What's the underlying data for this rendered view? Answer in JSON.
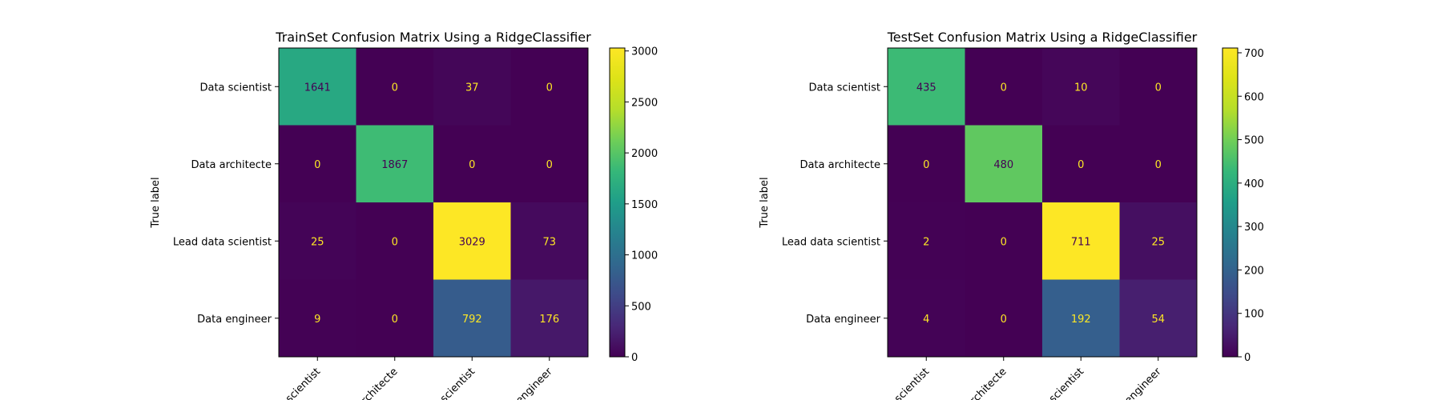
{
  "chart_data": [
    {
      "type": "heatmap",
      "title": "TrainSet Confusion Matrix Using a RidgeClassifier",
      "ylabel": "True label",
      "xlabel": "",
      "row_labels": [
        "Data scientist",
        "Data architecte",
        "Lead data scientist",
        "Data engineer"
      ],
      "col_labels": [
        "scientist",
        "architecte",
        "scientist",
        "engineer"
      ],
      "matrix": [
        [
          1641,
          0,
          37,
          0
        ],
        [
          0,
          1867,
          0,
          0
        ],
        [
          25,
          0,
          3029,
          73
        ],
        [
          9,
          0,
          792,
          176
        ]
      ],
      "colorbar": {
        "min": 0,
        "max": 3029,
        "ticks": [
          0,
          500,
          1000,
          1500,
          2000,
          2500,
          3000
        ]
      },
      "colormap": "viridis"
    },
    {
      "type": "heatmap",
      "title": "TestSet Confusion Matrix Using a RidgeClassifier",
      "ylabel": "True label",
      "xlabel": "",
      "row_labels": [
        "Data scientist",
        "Data architecte",
        "Lead data scientist",
        "Data engineer"
      ],
      "col_labels": [
        "scientist",
        "architecte",
        "scientist",
        "engineer"
      ],
      "matrix": [
        [
          435,
          0,
          10,
          0
        ],
        [
          0,
          480,
          0,
          0
        ],
        [
          2,
          0,
          711,
          25
        ],
        [
          4,
          0,
          192,
          54
        ]
      ],
      "colorbar": {
        "min": 0,
        "max": 711,
        "ticks": [
          0,
          100,
          200,
          300,
          400,
          500,
          600,
          700
        ]
      },
      "colormap": "viridis"
    }
  ]
}
